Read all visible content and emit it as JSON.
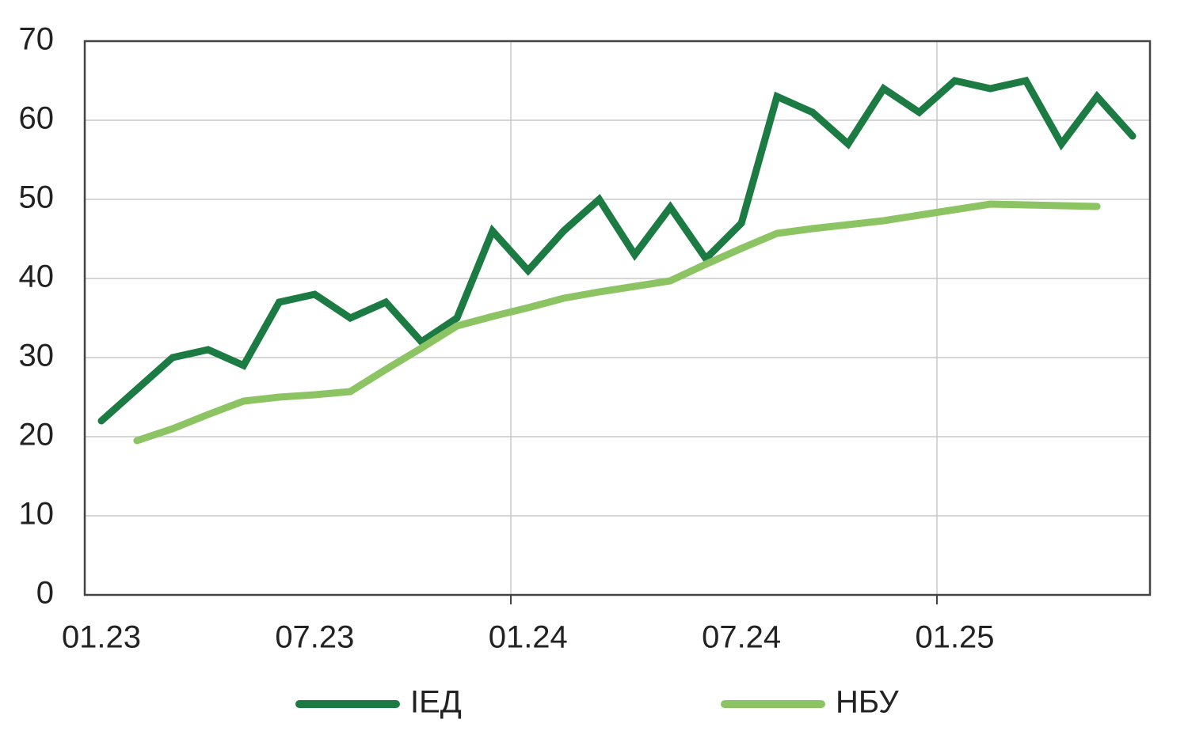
{
  "chart_data": {
    "type": "line",
    "categories": [
      "01.23",
      null,
      null,
      null,
      null,
      null,
      "07.23",
      null,
      null,
      null,
      null,
      null,
      "01.24",
      null,
      null,
      null,
      null,
      null,
      "07.24",
      null,
      null,
      null,
      null,
      null,
      "01.25",
      null,
      null,
      null,
      null,
      null
    ],
    "series": [
      {
        "name": "ІЕД",
        "color": "#1b7b42",
        "values": [
          22,
          26,
          30,
          31,
          29,
          37,
          38,
          35,
          37,
          32,
          35,
          46,
          41,
          46,
          50,
          43,
          49,
          42.5,
          47,
          63,
          61,
          57,
          64,
          61,
          65,
          64,
          65,
          57,
          63,
          58
        ]
      },
      {
        "name": "НБУ",
        "color": "#8dc463",
        "values": [
          null,
          19.5,
          21,
          22.8,
          24.5,
          25,
          25.3,
          25.7,
          28.5,
          31.2,
          34,
          35.2,
          36.3,
          37.5,
          38.3,
          39,
          39.7,
          41.8,
          43.8,
          45.7,
          46.3,
          46.8,
          47.3,
          48,
          48.7,
          49.4,
          49.3,
          49.2,
          49.1,
          null
        ]
      }
    ],
    "ylim": [
      0,
      70
    ],
    "yticks": [
      0,
      10,
      20,
      30,
      40,
      50,
      60,
      70
    ],
    "grid": true,
    "legend": "bottom"
  }
}
